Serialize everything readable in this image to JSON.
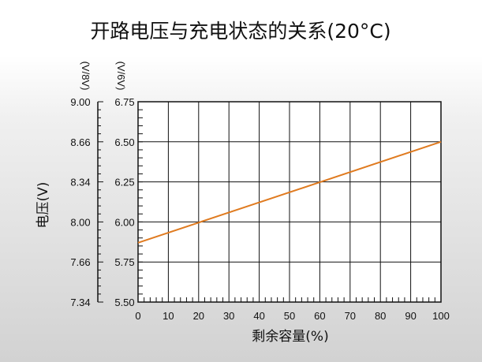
{
  "chart_data": {
    "type": "line",
    "title": "开路电压与充电状态的关系(20°C)",
    "xlabel": "剩余容量(%)",
    "ylabel": "电压(V)",
    "y_unit_8v": "(V/8V)",
    "y_unit_6v": "(V/6V)",
    "x_ticks": [
      0,
      10,
      20,
      30,
      40,
      50,
      60,
      70,
      80,
      90,
      100
    ],
    "xlim": [
      0,
      100
    ],
    "y_ticks_8v": [
      "7.34",
      "7.66",
      "8.00",
      "8.34",
      "8.66",
      "9.00"
    ],
    "y_ticks_6v": [
      "5.50",
      "5.75",
      "6.00",
      "6.25",
      "6.50",
      "6.75"
    ],
    "ylim_6v": [
      5.5,
      6.75
    ],
    "grid": true,
    "series": [
      {
        "color": "#e07b20",
        "x": [
          0,
          100
        ],
        "y": [
          5.87,
          6.5
        ]
      }
    ]
  }
}
